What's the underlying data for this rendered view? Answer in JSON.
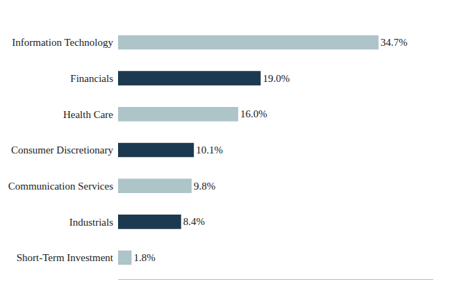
{
  "chart_data": {
    "type": "bar",
    "orientation": "horizontal",
    "categories": [
      "Short-Term Investment",
      "Industrials",
      "Communication Services",
      "Consumer Discretionary",
      "Health Care",
      "Financials",
      "Information Technology"
    ],
    "values": [
      1.8,
      8.4,
      9.8,
      10.1,
      16.0,
      19.0,
      34.7
    ],
    "value_labels": [
      "1.8%",
      "8.4%",
      "9.8%",
      "10.1%",
      "16.0%",
      "19.0%",
      "34.7%"
    ],
    "data_labels": true,
    "colors": [
      "#adc4c9",
      "#1b3a52",
      "#adc4c9",
      "#1b3a52",
      "#adc4c9",
      "#1b3a52",
      "#adc4c9"
    ],
    "xlim": [
      0,
      42
    ],
    "grid": false,
    "tick_labels": "y"
  }
}
